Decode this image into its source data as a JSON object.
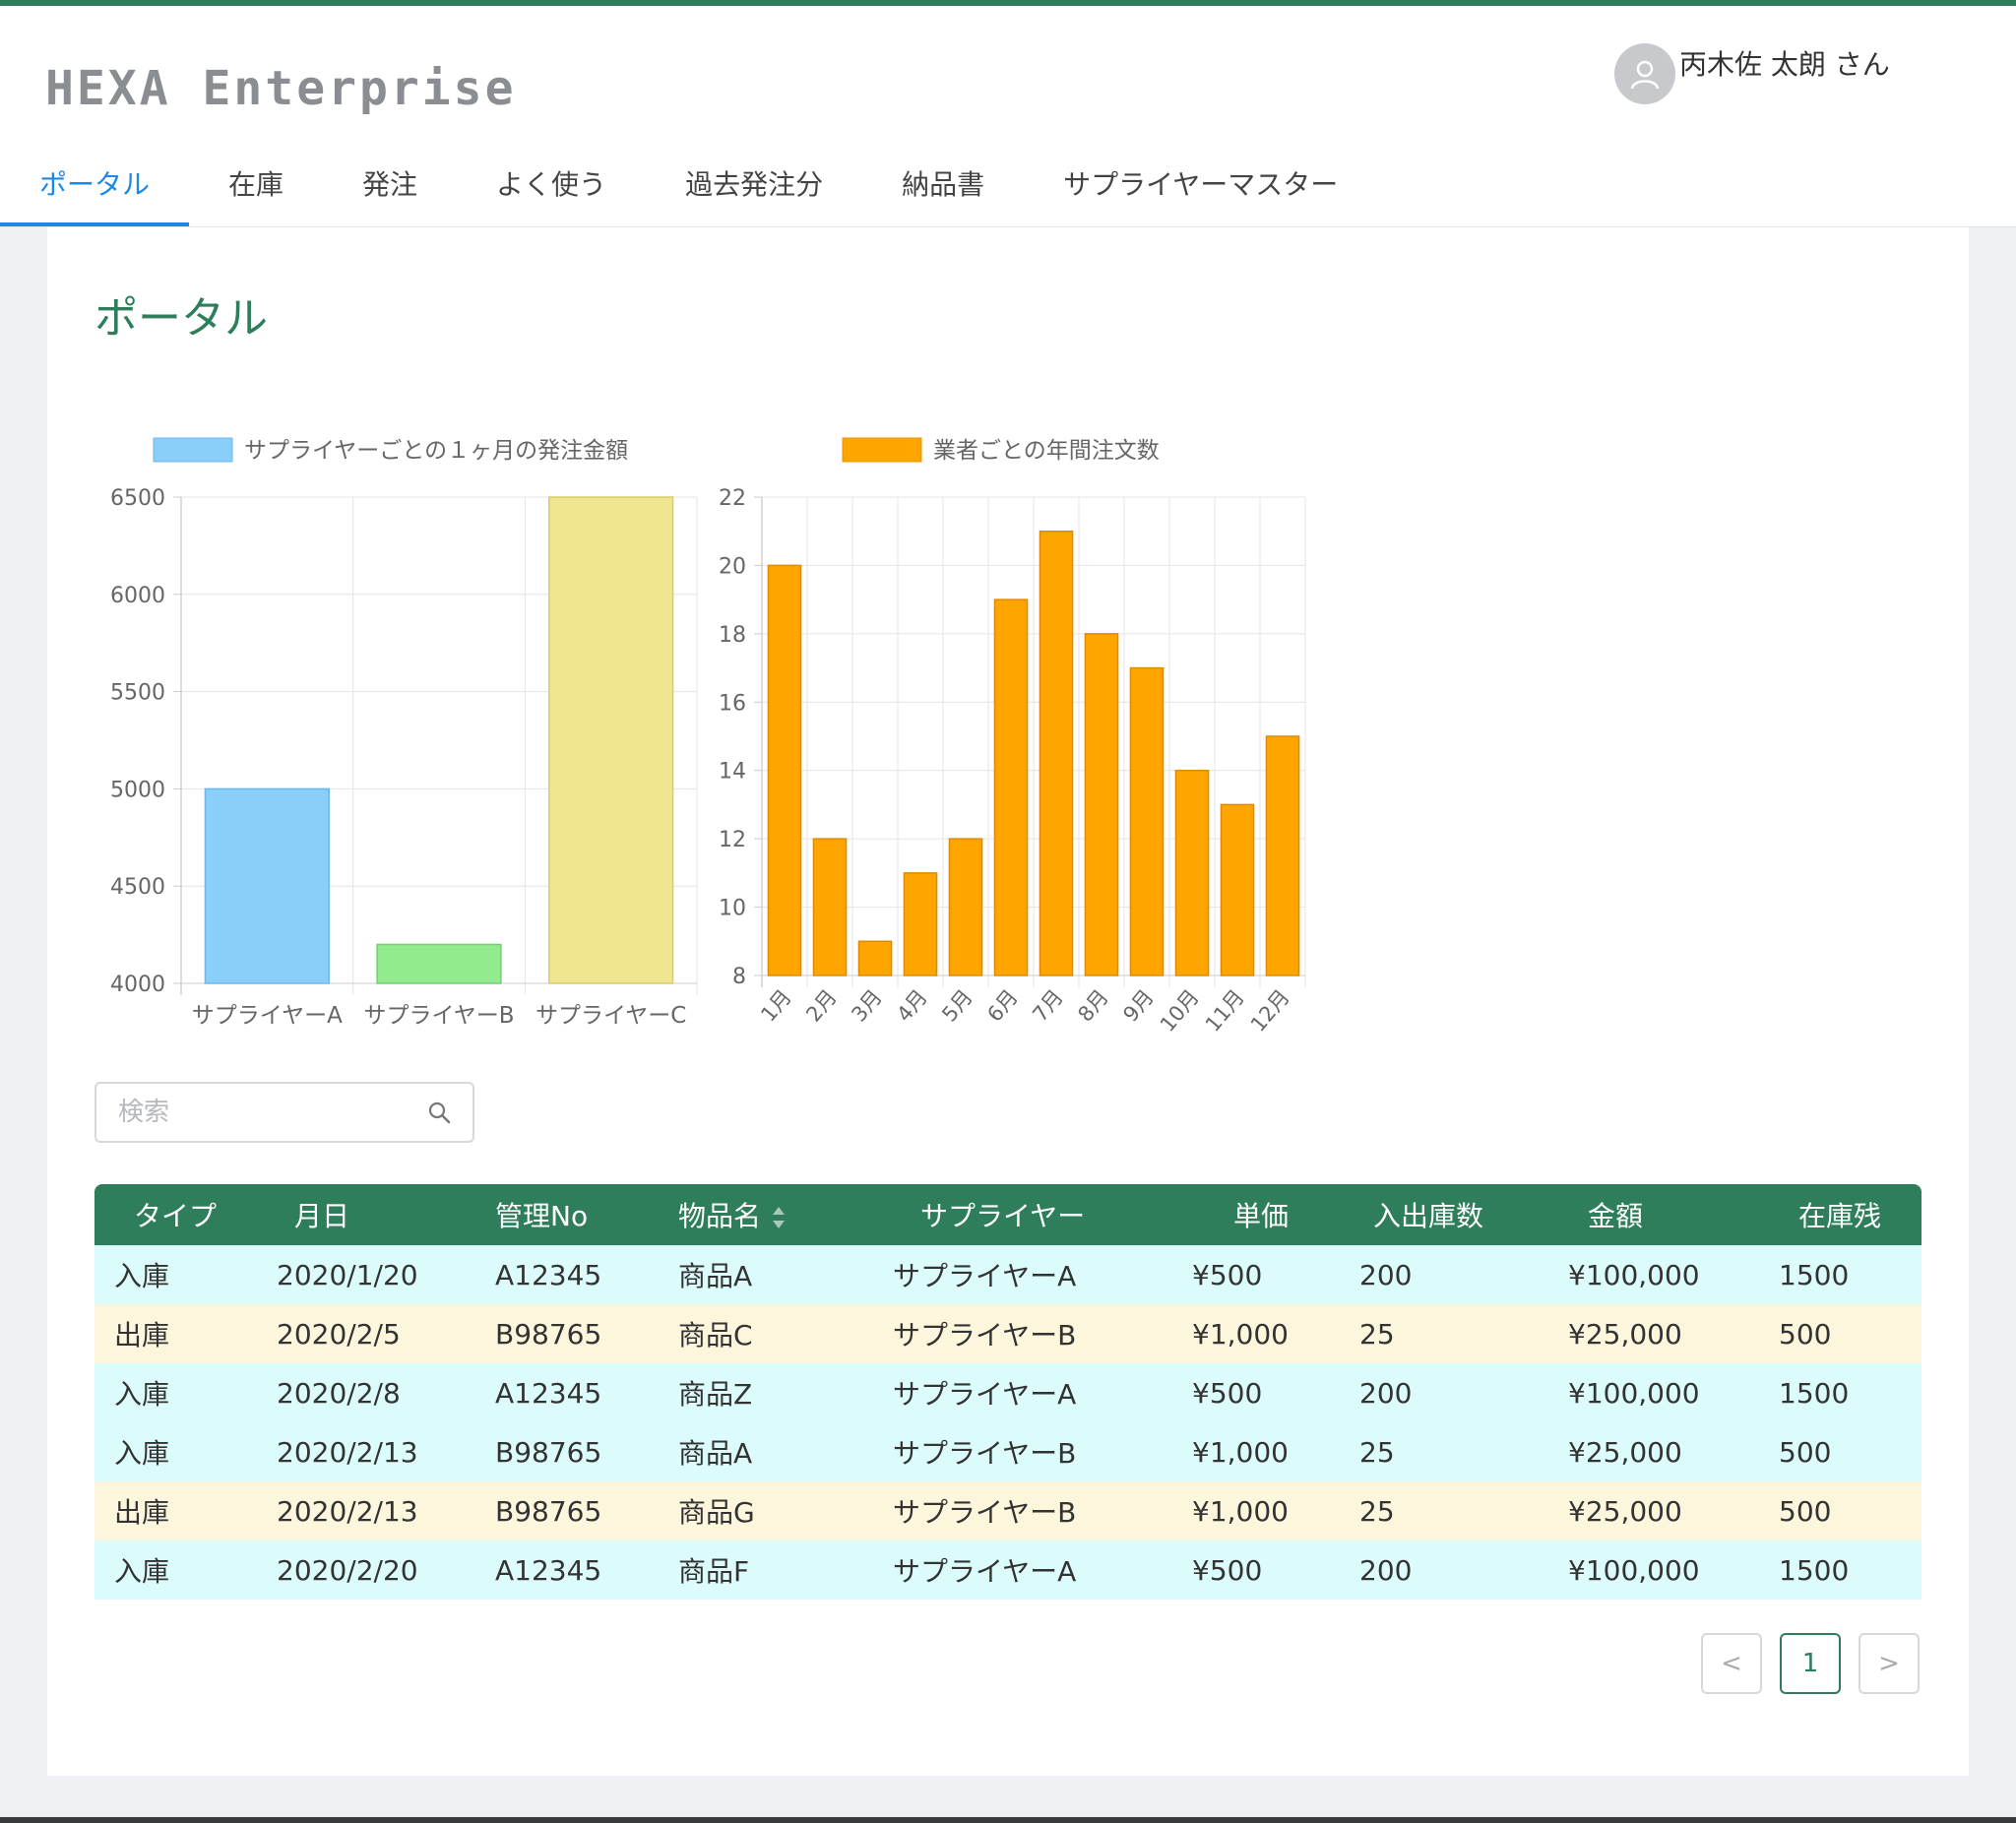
{
  "app": {
    "logo": "HEXA Enterprise"
  },
  "user": {
    "name": "丙木佐 太朗 さん"
  },
  "nav": {
    "items": [
      {
        "label": "ポータル"
      },
      {
        "label": "在庫"
      },
      {
        "label": "発注"
      },
      {
        "label": "よく使う"
      },
      {
        "label": "過去発注分"
      },
      {
        "label": "納品書"
      },
      {
        "label": "サプライヤーマスター"
      }
    ]
  },
  "page": {
    "title": "ポータル"
  },
  "colors": {
    "accent": "#2e7d5b",
    "nav_active": "#1e88e5",
    "row_in": "#dcfcfc",
    "row_out": "#fcf6dc"
  },
  "chart_data": [
    {
      "type": "bar",
      "legend": "サプライヤーごとの１ヶ月の発注金額",
      "legend_position": "top",
      "categories": [
        "サプライヤーA",
        "サプライヤーB",
        "サプライヤーC"
      ],
      "values": [
        5000,
        4200,
        6500
      ],
      "bar_colors": [
        "#89cff9",
        "#93eb8f",
        "#efe68f"
      ],
      "ylim": [
        4000,
        6500
      ],
      "yticks": [
        4000,
        4500,
        5000,
        5500,
        6000,
        6500
      ],
      "grid": true
    },
    {
      "type": "bar",
      "legend": "業者ごとの年間注文数",
      "legend_position": "top",
      "categories": [
        "1月",
        "2月",
        "3月",
        "4月",
        "5月",
        "6月",
        "7月",
        "8月",
        "9月",
        "10月",
        "11月",
        "12月"
      ],
      "values": [
        20,
        12,
        9,
        11,
        12,
        19,
        21,
        18,
        17,
        14,
        13,
        15
      ],
      "bar_color": "#ffa500",
      "ylim": [
        8,
        22
      ],
      "yticks": [
        8,
        10,
        12,
        14,
        16,
        18,
        20,
        22
      ],
      "grid": true
    }
  ],
  "search": {
    "placeholder": "検索",
    "value": ""
  },
  "table": {
    "headers": [
      "タイプ",
      "月日",
      "管理No",
      "物品名",
      "サプライヤー",
      "単価",
      "入出庫数",
      "金額",
      "在庫残"
    ],
    "rows": [
      [
        "入庫",
        "2020/1/20",
        "A12345",
        "商品A",
        "サプライヤーA",
        "¥500",
        "200",
        "¥100,000",
        "1500"
      ],
      [
        "出庫",
        "2020/2/5",
        "B98765",
        "商品C",
        "サプライヤーB",
        "¥1,000",
        "25",
        "¥25,000",
        "500"
      ],
      [
        "入庫",
        "2020/2/8",
        "A12345",
        "商品Z",
        "サプライヤーA",
        "¥500",
        "200",
        "¥100,000",
        "1500"
      ],
      [
        "入庫",
        "2020/2/13",
        "B98765",
        "商品A",
        "サプライヤーB",
        "¥1,000",
        "25",
        "¥25,000",
        "500"
      ],
      [
        "出庫",
        "2020/2/13",
        "B98765",
        "商品G",
        "サプライヤーB",
        "¥1,000",
        "25",
        "¥25,000",
        "500"
      ],
      [
        "入庫",
        "2020/2/20",
        "A12345",
        "商品F",
        "サプライヤーA",
        "¥500",
        "200",
        "¥100,000",
        "1500"
      ]
    ]
  },
  "pagination": {
    "prev": "<",
    "current": "1",
    "next": ">"
  }
}
